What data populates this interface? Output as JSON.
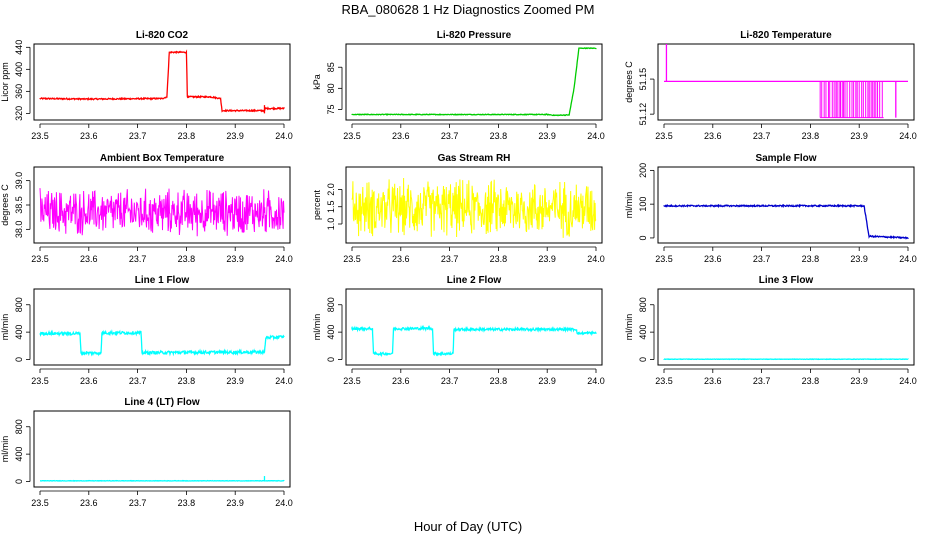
{
  "figure": {
    "title": "RBA_080628  1 Hz Diagnostics Zoomed PM",
    "xlabel": "Hour of Day (UTC)"
  },
  "chart_data": [
    {
      "type": "line",
      "title": "Li-820 CO2",
      "ylabel": "Licor ppm",
      "color": "#ff0000",
      "xlim": [
        23.5,
        24.0
      ],
      "ylim": [
        308,
        446
      ],
      "xticks": [
        "23.5",
        "23.6",
        "23.7",
        "23.8",
        "23.9",
        "24.0"
      ],
      "yticks": [
        {
          "v": 320,
          "label": "320"
        },
        {
          "v": 360,
          "label": "360"
        },
        {
          "v": 400,
          "label": "400"
        },
        {
          "v": 440,
          "label": "440"
        }
      ],
      "noise": 1.2,
      "series": [
        {
          "x": 23.5,
          "y": 347
        },
        {
          "x": 23.6,
          "y": 346
        },
        {
          "x": 23.75,
          "y": 347
        },
        {
          "x": 23.76,
          "y": 350
        },
        {
          "x": 23.765,
          "y": 431
        },
        {
          "x": 23.8,
          "y": 431
        },
        {
          "x": 23.802,
          "y": 350
        },
        {
          "x": 23.85,
          "y": 350
        },
        {
          "x": 23.87,
          "y": 347
        },
        {
          "x": 23.873,
          "y": 325
        },
        {
          "x": 23.96,
          "y": 325
        },
        {
          "x": 23.962,
          "y": 329
        },
        {
          "x": 24.0,
          "y": 329
        }
      ],
      "spikes": [
        {
          "x": 23.96,
          "y1": 320,
          "y2": 335
        }
      ]
    },
    {
      "type": "line",
      "title": "Li-820 Pressure",
      "ylabel": "kPa",
      "color": "#00cc00",
      "xlim": [
        23.5,
        24.0
      ],
      "ylim": [
        72.5,
        90.5
      ],
      "xticks": [
        "23.5",
        "23.6",
        "23.7",
        "23.8",
        "23.9",
        "24.0"
      ],
      "yticks": [
        {
          "v": 75,
          "label": "75"
        },
        {
          "v": 80,
          "label": "80"
        },
        {
          "v": 85,
          "label": "85"
        }
      ],
      "noise": 0.08,
      "series": [
        {
          "x": 23.5,
          "y": 73.8
        },
        {
          "x": 23.9,
          "y": 73.8
        },
        {
          "x": 23.915,
          "y": 73.6
        },
        {
          "x": 23.945,
          "y": 73.7
        },
        {
          "x": 23.955,
          "y": 80
        },
        {
          "x": 23.965,
          "y": 89.5
        },
        {
          "x": 24.0,
          "y": 89.5
        }
      ]
    },
    {
      "type": "line",
      "title": "Li-820 Temperature",
      "ylabel": "degrees C",
      "color": "#ff00ff",
      "xlim": [
        23.5,
        24.0
      ],
      "ylim": [
        51.115,
        51.18
      ],
      "xticks": [
        "23.5",
        "23.6",
        "23.7",
        "23.8",
        "23.9",
        "24.0"
      ],
      "yticks": [
        {
          "v": 51.12,
          "label": "51.12"
        },
        {
          "v": 51.15,
          "label": "51.15"
        }
      ],
      "noise": 0,
      "series": [
        {
          "x": 23.5,
          "y": 51.148
        },
        {
          "x": 24.0,
          "y": 51.148
        }
      ],
      "spikes": [
        {
          "x": 23.505,
          "y1": 51.148,
          "y2": 51.18
        }
      ],
      "flicker": {
        "x0": 23.82,
        "x1": 23.95,
        "y1": 51.117,
        "y2": 51.148
      },
      "extra_spikes": [
        {
          "x": 23.975,
          "y1": 51.117,
          "y2": 51.148
        }
      ]
    },
    {
      "type": "line",
      "title": "Ambient Box Temperature",
      "ylabel": "degrees C",
      "color": "#ff00ff",
      "xlim": [
        23.5,
        24.0
      ],
      "ylim": [
        37.72,
        39.28
      ],
      "xticks": [
        "23.5",
        "23.6",
        "23.7",
        "23.8",
        "23.9",
        "24.0"
      ],
      "yticks": [
        {
          "v": 38.0,
          "label": "38.0"
        },
        {
          "v": 38.5,
          "label": "38.5"
        },
        {
          "v": 39.0,
          "label": "39.0"
        }
      ],
      "noise_dense": {
        "center": 38.35,
        "amp": 0.55
      },
      "series": [
        {
          "x": 23.5,
          "y": 38.35
        },
        {
          "x": 24.0,
          "y": 38.35
        }
      ]
    },
    {
      "type": "line",
      "title": "Gas Stream RH",
      "ylabel": "percent",
      "color": "#ffff00",
      "xlim": [
        23.5,
        24.0
      ],
      "ylim": [
        0.45,
        2.65
      ],
      "xticks": [
        "23.5",
        "23.6",
        "23.7",
        "23.8",
        "23.9",
        "24.0"
      ],
      "yticks": [
        {
          "v": 1.0,
          "label": "1.0"
        },
        {
          "v": 1.5,
          "label": "1.5"
        },
        {
          "v": 2.0,
          "label": "2.0"
        }
      ],
      "noise_dense": {
        "center": 1.45,
        "amp": 0.95
      },
      "series": [
        {
          "x": 23.5,
          "y": 1.45
        },
        {
          "x": 24.0,
          "y": 1.45
        }
      ]
    },
    {
      "type": "line",
      "title": "Sample Flow",
      "ylabel": "ml/min",
      "color": "#0000cc",
      "xlim": [
        23.5,
        24.0
      ],
      "ylim": [
        -15,
        210
      ],
      "xticks": [
        "23.5",
        "23.6",
        "23.7",
        "23.8",
        "23.9",
        "24.0"
      ],
      "yticks": [
        {
          "v": 0,
          "label": "0"
        },
        {
          "v": 100,
          "label": "100"
        },
        {
          "v": 200,
          "label": "200"
        }
      ],
      "noise": 2,
      "series": [
        {
          "x": 23.5,
          "y": 95
        },
        {
          "x": 23.91,
          "y": 95
        },
        {
          "x": 23.92,
          "y": 5
        },
        {
          "x": 24.0,
          "y": 0
        }
      ]
    },
    {
      "type": "line",
      "title": "Line 1 Flow",
      "ylabel": "ml/min",
      "color": "#00ffff",
      "xlim": [
        23.5,
        24.0
      ],
      "ylim": [
        -80,
        1030
      ],
      "xticks": [
        "23.5",
        "23.6",
        "23.7",
        "23.8",
        "23.9",
        "24.0"
      ],
      "yticks": [
        {
          "v": 0,
          "label": "0"
        },
        {
          "v": 400,
          "label": "400"
        },
        {
          "v": 800,
          "label": "800"
        }
      ],
      "noise": 22,
      "series": [
        {
          "x": 23.5,
          "y": 380
        },
        {
          "x": 23.582,
          "y": 380
        },
        {
          "x": 23.584,
          "y": 95
        },
        {
          "x": 23.625,
          "y": 95
        },
        {
          "x": 23.627,
          "y": 390
        },
        {
          "x": 23.707,
          "y": 390
        },
        {
          "x": 23.709,
          "y": 100
        },
        {
          "x": 23.96,
          "y": 110
        },
        {
          "x": 23.963,
          "y": 320
        },
        {
          "x": 24.0,
          "y": 330
        }
      ]
    },
    {
      "type": "line",
      "title": "Line 2 Flow",
      "ylabel": "ml/min",
      "color": "#00ffff",
      "xlim": [
        23.5,
        24.0
      ],
      "ylim": [
        -80,
        1030
      ],
      "xticks": [
        "23.5",
        "23.6",
        "23.7",
        "23.8",
        "23.9",
        "24.0"
      ],
      "yticks": [
        {
          "v": 0,
          "label": "0"
        },
        {
          "v": 400,
          "label": "400"
        },
        {
          "v": 800,
          "label": "800"
        }
      ],
      "noise": 18,
      "series": [
        {
          "x": 23.5,
          "y": 450
        },
        {
          "x": 23.542,
          "y": 450
        },
        {
          "x": 23.544,
          "y": 85
        },
        {
          "x": 23.583,
          "y": 85
        },
        {
          "x": 23.585,
          "y": 450
        },
        {
          "x": 23.665,
          "y": 455
        },
        {
          "x": 23.667,
          "y": 85
        },
        {
          "x": 23.707,
          "y": 85
        },
        {
          "x": 23.709,
          "y": 440
        },
        {
          "x": 23.96,
          "y": 440
        },
        {
          "x": 23.962,
          "y": 380
        },
        {
          "x": 24.0,
          "y": 390
        }
      ]
    },
    {
      "type": "line",
      "title": "Line 3 Flow",
      "ylabel": "ml/min",
      "color": "#00ffff",
      "xlim": [
        23.5,
        24.0
      ],
      "ylim": [
        -80,
        1030
      ],
      "xticks": [
        "23.5",
        "23.6",
        "23.7",
        "23.8",
        "23.9",
        "24.0"
      ],
      "yticks": [
        {
          "v": 0,
          "label": "0"
        },
        {
          "v": 400,
          "label": "400"
        },
        {
          "v": 800,
          "label": "800"
        }
      ],
      "noise": 3,
      "series": [
        {
          "x": 23.5,
          "y": 5
        },
        {
          "x": 24.0,
          "y": 5
        }
      ]
    },
    {
      "type": "line",
      "title": "Line 4 (LT) Flow",
      "ylabel": "ml/min",
      "color": "#00ffff",
      "xlim": [
        23.5,
        24.0
      ],
      "ylim": [
        -80,
        1030
      ],
      "xticks": [
        "23.5",
        "23.6",
        "23.7",
        "23.8",
        "23.9",
        "24.0"
      ],
      "yticks": [
        {
          "v": 0,
          "label": "0"
        },
        {
          "v": 400,
          "label": "400"
        },
        {
          "v": 800,
          "label": "800"
        }
      ],
      "noise": 3,
      "series": [
        {
          "x": 23.5,
          "y": 10
        },
        {
          "x": 24.0,
          "y": 10
        }
      ],
      "spikes": [
        {
          "x": 23.96,
          "y1": 10,
          "y2": 80
        }
      ]
    }
  ]
}
